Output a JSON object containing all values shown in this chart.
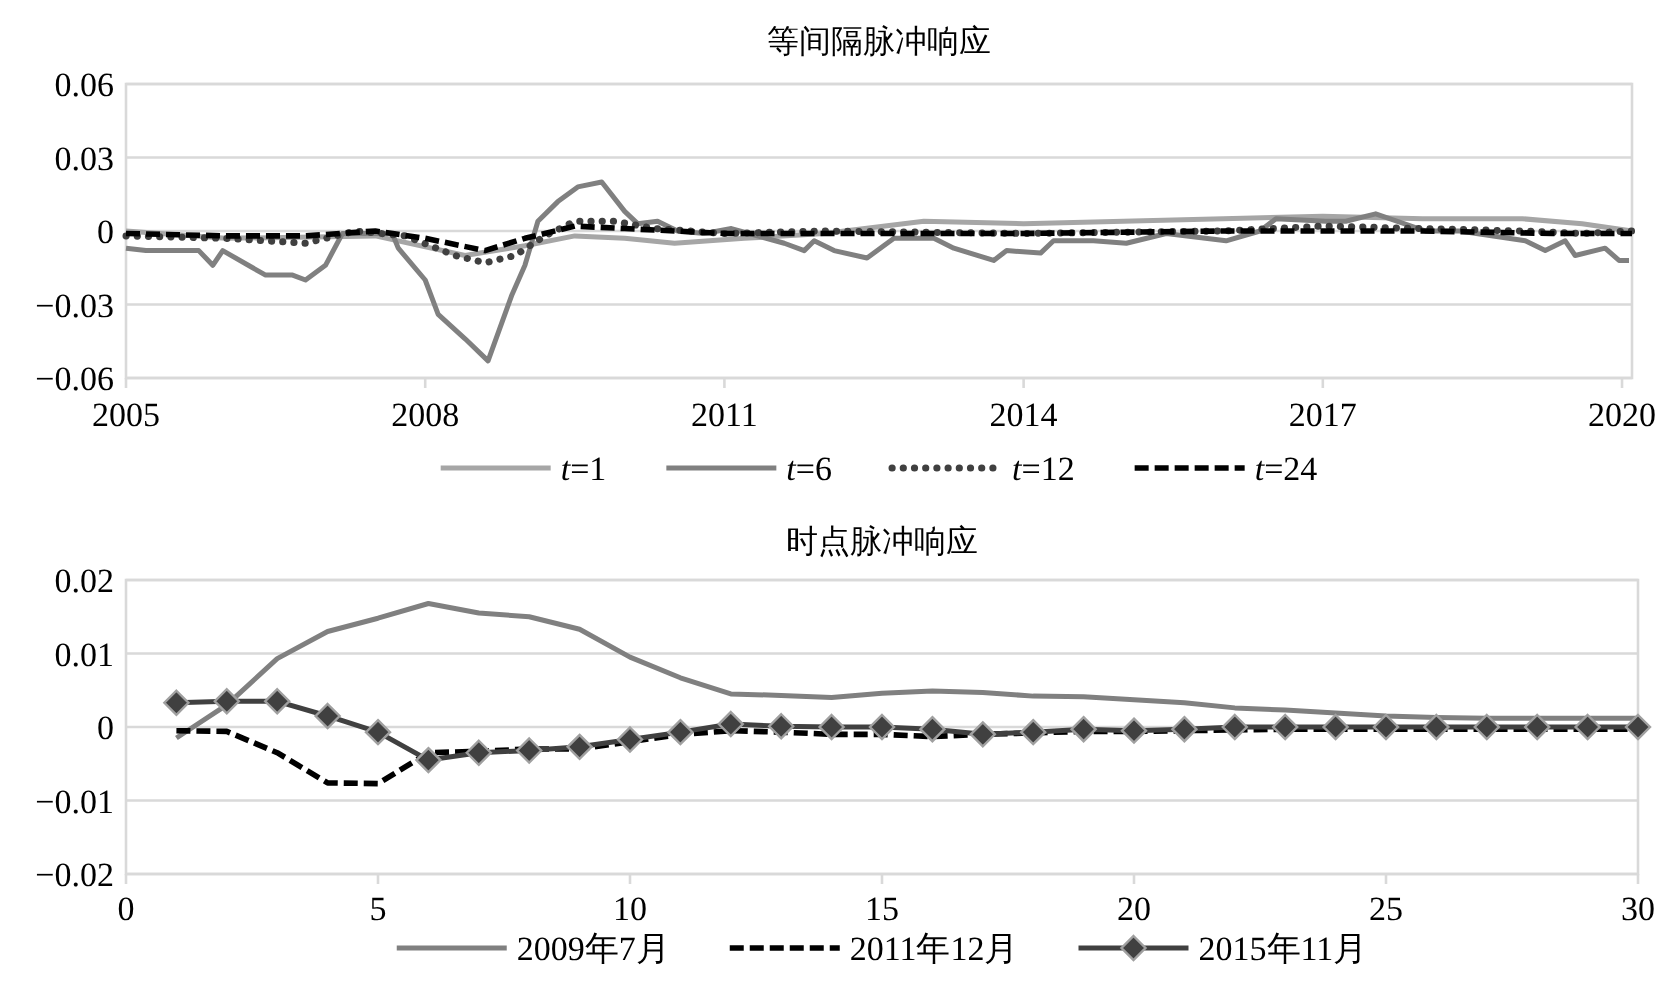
{
  "chart_data": [
    {
      "type": "line",
      "title": "等间隔脉冲响应",
      "xlim": [
        2005,
        2020.1
      ],
      "xticks": [
        2005,
        2008,
        2011,
        2014,
        2017,
        2020
      ],
      "ylim": [
        -0.06,
        0.06
      ],
      "yticks": [
        {
          "value": -0.06,
          "label": "−0.06"
        },
        {
          "value": -0.03,
          "label": "−0.03"
        },
        0,
        0.03,
        0.06
      ],
      "grid": "y",
      "legend": "bottom",
      "series": [
        {
          "name": "*t*=1",
          "color": "#a6a6a6",
          "line_style": "solid",
          "x": [
            2005,
            2006,
            2007.5,
            2008.4,
            2009.0,
            2009.5,
            2010,
            2010.5,
            2011.2,
            2012,
            2013,
            2014,
            2015,
            2016,
            2017,
            2018,
            2019,
            2019.6,
            2020.1
          ],
          "values": [
            0,
            -0.003,
            -0.002,
            -0.01,
            -0.006,
            -0.002,
            -0.003,
            -0.005,
            -0.003,
            -0.001,
            0.004,
            0.003,
            0.004,
            0.005,
            0.006,
            0.005,
            0.005,
            0.003,
            0
          ]
        },
        {
          "name": "*t*=6",
          "color": "#808080",
          "line_style": "solid",
          "x": [
            2005,
            2005.2,
            2005.73,
            2005.87,
            2005.97,
            2006.27,
            2006.4,
            2006.67,
            2006.8,
            2007.0,
            2007.17,
            2007.67,
            2007.73,
            2008.0,
            2008.13,
            2008.4,
            2008.63,
            2008.87,
            2009.0,
            2009.13,
            2009.33,
            2009.53,
            2009.77,
            2010.0,
            2010.13,
            2010.33,
            2010.53,
            2010.8,
            2011.07,
            2011.6,
            2011.8,
            2011.9,
            2012.1,
            2012.43,
            2012.7,
            2013.1,
            2013.3,
            2013.7,
            2013.83,
            2014.17,
            2014.3,
            2014.7,
            2015.03,
            2015.43,
            2016.03,
            2016.37,
            2016.53,
            2017.03,
            2017.23,
            2017.53,
            2018.03,
            2018.37,
            2019.03,
            2019.23,
            2019.43,
            2019.53,
            2019.83,
            2019.97,
            2020.07
          ],
          "values": [
            -0.007,
            -0.008,
            -0.008,
            -0.014,
            -0.008,
            -0.015,
            -0.018,
            -0.018,
            -0.02,
            -0.014,
            -0.001,
            -0.001,
            -0.007,
            -0.02,
            -0.034,
            -0.044,
            -0.053,
            -0.026,
            -0.014,
            0.004,
            0.012,
            0.018,
            0.02,
            0.008,
            0.003,
            0.004,
            0,
            -0.001,
            0.001,
            -0.005,
            -0.008,
            -0.004,
            -0.008,
            -0.011,
            -0.003,
            -0.003,
            -0.007,
            -0.012,
            -0.008,
            -0.009,
            -0.004,
            -0.004,
            -0.005,
            -0.001,
            -0.004,
            0,
            0.005,
            0.004,
            0.004,
            0.007,
            0,
            0,
            -0.004,
            -0.008,
            -0.004,
            -0.01,
            -0.007,
            -0.012,
            -0.012
          ]
        },
        {
          "name": "*t*=12",
          "color": "#404040",
          "line_style": "dotted",
          "x": [
            2005,
            2006,
            2006.8,
            2007.3,
            2007.8,
            2008.3,
            2008.6,
            2008.9,
            2009.2,
            2009.5,
            2009.9,
            2010.3,
            2011,
            2012,
            2014,
            2016,
            2017,
            2018,
            2019,
            2019.6,
            2020.1
          ],
          "values": [
            -0.002,
            -0.003,
            -0.005,
            0,
            -0.002,
            -0.01,
            -0.013,
            -0.01,
            -0.002,
            0.004,
            0.004,
            0.001,
            -0.001,
            0,
            -0.001,
            0,
            0.002,
            0.001,
            0,
            -0.001,
            0
          ]
        },
        {
          "name": "*t*=24",
          "color": "#000000",
          "line_style": "dashed",
          "x": [
            2005,
            2006,
            2006.8,
            2007.5,
            2008.0,
            2008.6,
            2009.0,
            2009.5,
            2010,
            2011,
            2014,
            2016,
            2017,
            2018,
            2019.3,
            2020.1
          ],
          "values": [
            -0.001,
            -0.002,
            -0.002,
            0,
            -0.003,
            -0.008,
            -0.003,
            0.002,
            0.001,
            -0.001,
            -0.001,
            0,
            0,
            0,
            -0.001,
            -0.001
          ]
        }
      ]
    },
    {
      "type": "line",
      "title": "时点脉冲响应",
      "xlim": [
        0,
        30
      ],
      "xticks": [
        0,
        5,
        10,
        15,
        20,
        25,
        30
      ],
      "ylim": [
        -0.02,
        0.02
      ],
      "yticks": [
        {
          "value": -0.02,
          "label": "−0.02"
        },
        {
          "value": -0.01,
          "label": "−0.01"
        },
        0,
        0.01,
        0.02
      ],
      "grid": "y",
      "legend": "bottom",
      "x": [
        1,
        2,
        3,
        4,
        5,
        6,
        7,
        8,
        9,
        10,
        11,
        12,
        13,
        14,
        15,
        16,
        17,
        18,
        19,
        20,
        21,
        22,
        23,
        24,
        25,
        26,
        27,
        28,
        29,
        30
      ],
      "series": [
        {
          "name": "2009年7月",
          "color": "#808080",
          "line_style": "solid",
          "values": [
            -0.0015,
            0.003,
            0.0093,
            0.013,
            0.0148,
            0.0168,
            0.0155,
            0.015,
            0.0133,
            0.0095,
            0.0067,
            0.0045,
            0.0043,
            0.004,
            0.0046,
            0.0049,
            0.0047,
            0.0042,
            0.0041,
            0.0037,
            0.0033,
            0.0026,
            0.0023,
            0.0019,
            0.0015,
            0.0013,
            0.0012,
            0.0012,
            0.0012,
            0.0012
          ]
        },
        {
          "name": "2011年12月",
          "color": "#000000",
          "line_style": "dashed",
          "values": [
            -0.0005,
            -0.0006,
            -0.0035,
            -0.0076,
            -0.0077,
            -0.0035,
            -0.0033,
            -0.003,
            -0.003,
            -0.002,
            -0.001,
            -0.0005,
            -0.0007,
            -0.001,
            -0.001,
            -0.0013,
            -0.001,
            -0.0008,
            -0.0006,
            -0.0006,
            -0.0005,
            -0.0004,
            -0.0003,
            -0.0003,
            -0.0003,
            -0.0003,
            -0.0003,
            -0.0003,
            -0.0003,
            -0.0003
          ]
        },
        {
          "name": "2015年11月",
          "color": "#404040",
          "line_style": "solid",
          "marker": "diamond",
          "values": [
            0.0033,
            0.0035,
            0.0035,
            0.0015,
            -0.0007,
            -0.0045,
            -0.0035,
            -0.0032,
            -0.0027,
            -0.0017,
            -0.0007,
            0.0004,
            0.0001,
            0,
            0,
            -0.0003,
            -0.001,
            -0.0007,
            -0.0003,
            -0.0005,
            -0.0003,
            0,
            0,
            0,
            0,
            0,
            0,
            0,
            0,
            0
          ]
        }
      ]
    }
  ]
}
